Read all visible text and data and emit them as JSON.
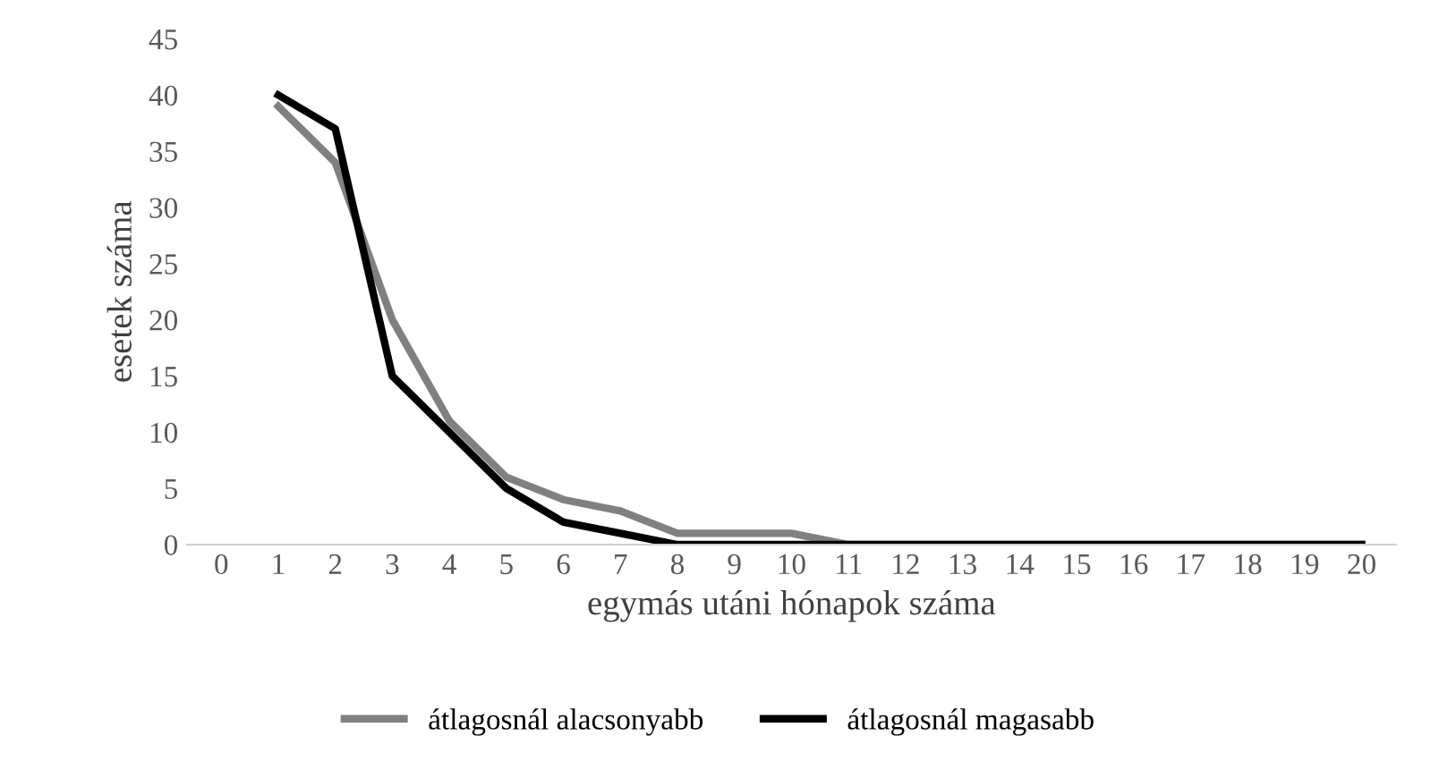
{
  "chart_data": {
    "type": "line",
    "xlabel": "egymás utáni hónapok száma",
    "ylabel": "esetek száma",
    "categories": [
      "0",
      "1",
      "2",
      "3",
      "4",
      "5",
      "6",
      "7",
      "8",
      "9",
      "10",
      "11",
      "12",
      "13",
      "14",
      "15",
      "16",
      "17",
      "18",
      "19",
      "20"
    ],
    "series": [
      {
        "name": "átlagosnál alacsonyabb",
        "color": "#808080",
        "values": [
          null,
          39,
          34,
          20,
          11,
          6,
          4,
          3,
          1,
          1,
          1,
          0,
          0,
          0,
          0,
          0,
          0,
          0,
          0,
          0,
          0
        ]
      },
      {
        "name": "átlagosnál magasabb",
        "color": "#000000",
        "values": [
          null,
          40,
          37,
          15,
          10,
          5,
          2,
          1,
          0,
          0,
          0,
          0,
          0,
          0,
          0,
          0,
          0,
          0,
          0,
          0,
          0
        ]
      }
    ],
    "ylim": [
      0,
      45
    ],
    "yticks": [
      0,
      5,
      10,
      15,
      20,
      25,
      30,
      35,
      40,
      45
    ],
    "grid": false,
    "legend": "bottom",
    "marker": "none",
    "line_style": "solid"
  }
}
